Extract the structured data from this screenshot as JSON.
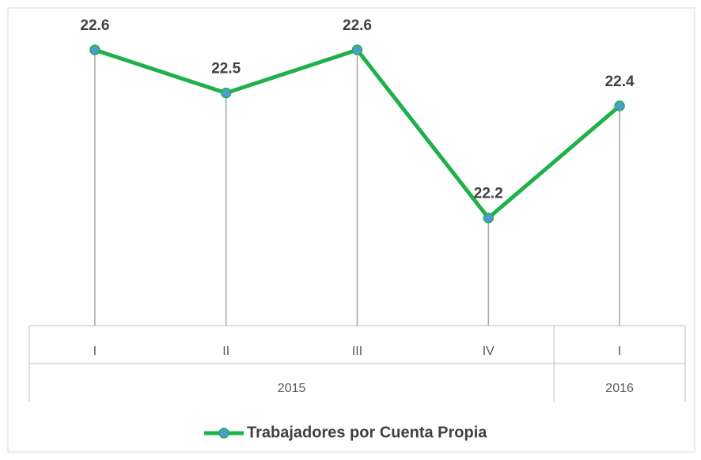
{
  "chart_data": {
    "type": "line",
    "categories": [
      "I",
      "II",
      "III",
      "IV",
      "I"
    ],
    "groups": [
      {
        "label": "2015",
        "span": 4
      },
      {
        "label": "2016",
        "span": 1
      }
    ],
    "series": [
      {
        "name": "Trabajadores por Cuenta Propia",
        "color": "#1fb14a",
        "marker_color": "#4f9bd1",
        "values": [
          22.57,
          22.47,
          22.57,
          22.18,
          22.44
        ],
        "value_labels": [
          "22.6",
          "22.5",
          "22.6",
          "22.2",
          "22.4"
        ]
      }
    ],
    "ylim": [
      21.93,
      22.64
    ],
    "drop_lines": true,
    "legend": "bottom"
  }
}
